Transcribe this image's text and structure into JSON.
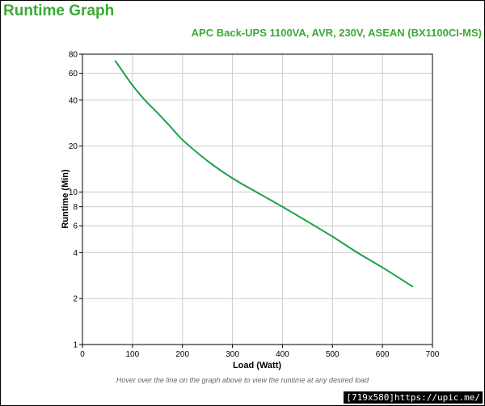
{
  "page": {
    "title": "Runtime Graph",
    "product": "APC Back-UPS 1100VA, AVR, 230V, ASEAN (BX1100CI-MS)",
    "hint": "Hover over the line on the graph above to view the runtime at any desired load",
    "watermark": "[719x580]https://upic.me/"
  },
  "colors": {
    "accent": "#3aaa35",
    "line": "#1aa34a",
    "grid": "#cccccc"
  },
  "chart_data": {
    "type": "line",
    "xlabel": "Load (Watt)",
    "ylabel": "Runtime (Min)",
    "xlim": [
      0,
      700
    ],
    "ylim": [
      1,
      80
    ],
    "yscale": "log",
    "grid": true,
    "x_ticks": [
      "0",
      "100",
      "200",
      "300",
      "400",
      "500",
      "600",
      "700"
    ],
    "y_ticks": [
      "1",
      "2",
      "4",
      "6",
      "8",
      "10",
      "20",
      "40",
      "60",
      "80"
    ],
    "series": [
      {
        "x": [
          66,
          80,
          100,
          125,
          150,
          175,
          200,
          250,
          300,
          350,
          400,
          450,
          500,
          550,
          600,
          660
        ],
        "y": [
          72,
          62,
          50,
          40,
          33,
          27,
          22,
          16,
          12.3,
          9.9,
          8.0,
          6.4,
          5.1,
          4.0,
          3.2,
          2.4
        ]
      }
    ]
  }
}
